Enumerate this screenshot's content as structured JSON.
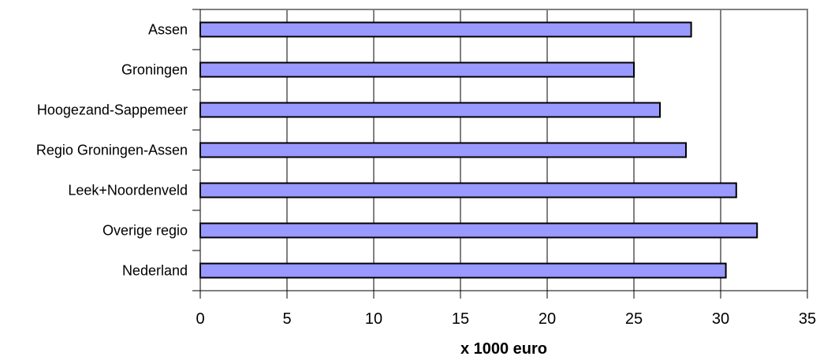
{
  "chart_data": {
    "type": "bar",
    "orientation": "horizontal",
    "categories": [
      "Assen",
      "Groningen",
      "Hoogezand-Sappemeer",
      "Regio Groningen-Assen",
      "Leek+Noordenveld",
      "Overige regio",
      "Nederland"
    ],
    "values": [
      28.3,
      25.0,
      26.5,
      28.0,
      30.9,
      32.1,
      30.3
    ],
    "xlabel": "x 1000 euro",
    "ylabel": "",
    "xlim": [
      0,
      35
    ],
    "xticks": [
      0,
      5,
      10,
      15,
      20,
      25,
      30,
      35
    ],
    "grid": "vertical",
    "legend": "none",
    "colors": {
      "bar_fill": "#9999ff",
      "bar_stroke": "#000000",
      "grid": "#000000",
      "axis": "#000000",
      "plot_border": "#808080"
    }
  }
}
